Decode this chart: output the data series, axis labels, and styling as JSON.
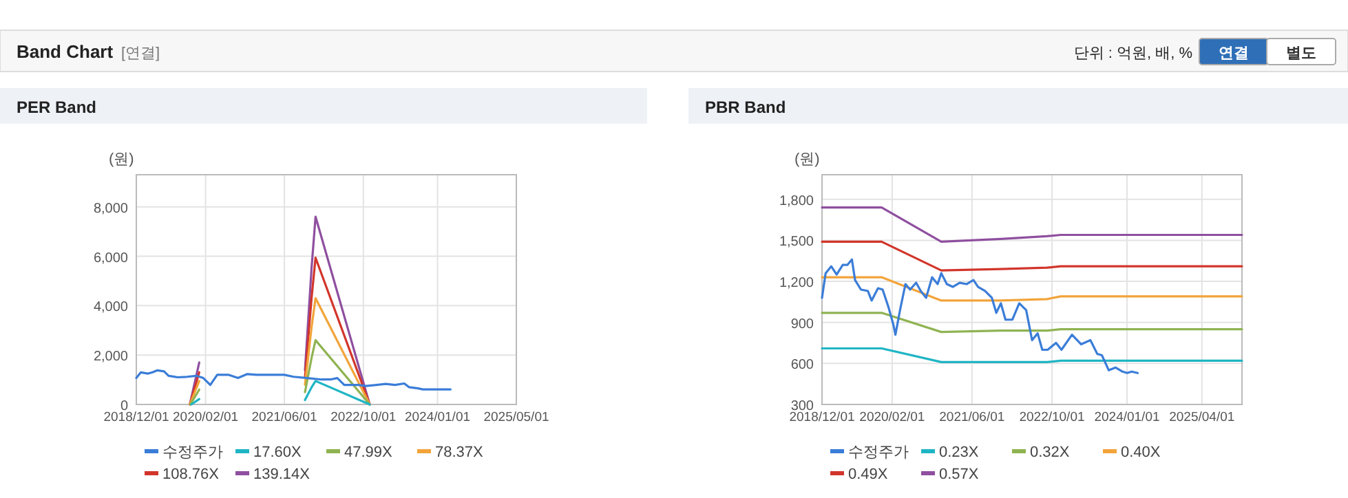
{
  "chart_data": [
    {
      "type": "line",
      "title": "PER Band",
      "ylabel": "(원)",
      "annotations": [
        "Band Chart",
        "[연결]",
        "단위 : 억원, 배, %",
        "연결",
        "별도"
      ],
      "grid": true,
      "legend": "bottom",
      "xlim": [
        "2018-12-01",
        "2025-05-01"
      ],
      "ylim": [
        0,
        9300
      ],
      "xticks": [
        {
          "value": "2018-12-01",
          "label": "2018/12/01"
        },
        {
          "value": "2020-02-01",
          "label": "2020/02/01"
        },
        {
          "value": "2021-06-01",
          "label": "2021/06/01"
        },
        {
          "value": "2022-10-01",
          "label": "2022/10/01"
        },
        {
          "value": "2024-01-01",
          "label": "2024/01/01"
        },
        {
          "value": "2025-05-01",
          "label": "2025/05/01"
        }
      ],
      "yticks": [
        0,
        {
          "value": 2000,
          "label": "2,000"
        },
        {
          "value": 4000,
          "label": "4,000"
        },
        {
          "value": 6000,
          "label": "6,000"
        },
        {
          "value": 8000,
          "label": "8,000"
        }
      ],
      "series": [
        {
          "name": "수정주가",
          "color": "#3b7dd8",
          "x": [
            "2018-12-01",
            "2018-12-29",
            "2019-02-10",
            "2019-03-11",
            "2019-04-08",
            "2019-05-21",
            "2019-06-18",
            "2019-08-14",
            "2019-10-10",
            "2019-12-06",
            "2020-01-18",
            "2020-03-01",
            "2020-04-13",
            "2020-06-23",
            "2020-08-19",
            "2020-10-15",
            "2020-12-11",
            "2021-02-06",
            "2021-05-31",
            "2021-07-27",
            "2021-10-20",
            "2022-01-14",
            "2022-03-12",
            "2022-04-23",
            "2022-06-05",
            "2022-08-30",
            "2022-10-17",
            "2022-12-21",
            "2023-02-16",
            "2023-04-14",
            "2023-06-10",
            "2023-07-09",
            "2023-09-04",
            "2023-10-02",
            "2023-11-28",
            "2024-03-21"
          ],
          "values": [
            1070,
            1300,
            1250,
            1300,
            1380,
            1340,
            1160,
            1100,
            1120,
            1160,
            1070,
            790,
            1200,
            1200,
            1070,
            1230,
            1200,
            1200,
            1200,
            1120,
            1070,
            1010,
            1010,
            1070,
            790,
            790,
            750,
            790,
            830,
            790,
            850,
            700,
            650,
            610,
            610,
            610
          ]
        },
        {
          "name": "17.60X",
          "color": "#1fb5c4",
          "x": [
            "2021-10-06",
            "2021-11-16",
            "2021-12-10",
            "2022-11-09"
          ],
          "values": [
            180,
            700,
            950,
            0
          ]
        },
        {
          "name": "47.99X",
          "color": "#8fb352",
          "x": [
            "2021-10-06",
            "2021-11-16",
            "2021-12-10",
            "2022-11-09"
          ],
          "values": [
            500,
            1900,
            2600,
            0
          ]
        },
        {
          "name": "78.37X",
          "color": "#f2a43a",
          "x": [
            "2021-10-06",
            "2021-11-16",
            "2021-12-10",
            "2022-11-09"
          ],
          "values": [
            800,
            3150,
            4300,
            0
          ]
        },
        {
          "name": "108.76X",
          "color": "#d2352b",
          "x": [
            "2021-10-06",
            "2021-11-16",
            "2021-12-10",
            "2022-11-09"
          ],
          "values": [
            1090,
            4350,
            5940,
            0
          ]
        },
        {
          "name": "139.14X",
          "color": "#8f4f9f",
          "x": [
            "2021-10-06",
            "2021-11-16",
            "2021-12-10",
            "2022-11-09"
          ],
          "values": [
            1390,
            5570,
            7600,
            0
          ]
        },
        {
          "color": "#1fb5c4",
          "x": [
            "2019-11-05",
            "2019-12-24"
          ],
          "values": [
            0,
            220
          ]
        },
        {
          "color": "#8fb352",
          "x": [
            "2019-10-30",
            "2019-12-24"
          ],
          "values": [
            0,
            600
          ]
        },
        {
          "color": "#f2a43a",
          "x": [
            "2019-10-27",
            "2019-12-24"
          ],
          "values": [
            0,
            950
          ]
        },
        {
          "color": "#d2352b",
          "x": [
            "2019-10-27",
            "2019-12-24"
          ],
          "values": [
            0,
            1300
          ]
        },
        {
          "color": "#8f4f9f",
          "x": [
            "2019-10-27",
            "2019-12-24"
          ],
          "values": [
            0,
            1700
          ]
        }
      ]
    },
    {
      "type": "line",
      "title": "PBR Band",
      "ylabel": "(원)",
      "grid": true,
      "legend": "bottom",
      "xlim": [
        "2018-12-01",
        "2025-12-01"
      ],
      "ylim": [
        300,
        1980
      ],
      "xticks": [
        {
          "value": "2018-12-01",
          "label": "2018/12/01"
        },
        {
          "value": "2020-02-01",
          "label": "2020/02/01"
        },
        {
          "value": "2021-06-01",
          "label": "2021/06/01"
        },
        {
          "value": "2022-10-01",
          "label": "2022/10/01"
        },
        {
          "value": "2024-01-01",
          "label": "2024/01/01"
        },
        {
          "value": "2025-04-01",
          "label": "2025/04/01"
        }
      ],
      "yticks": [
        300,
        600,
        900,
        {
          "value": 1200,
          "label": "1,200"
        },
        {
          "value": 1500,
          "label": "1,500"
        },
        {
          "value": 1800,
          "label": "1,800"
        }
      ],
      "series": [
        {
          "name": "수정주가",
          "color": "#3b7dd8",
          "x": [
            "2018-12-01",
            "2018-12-23",
            "2019-01-26",
            "2019-02-28",
            "2019-04-06",
            "2019-05-04",
            "2019-06-01",
            "2019-06-20",
            "2019-07-26",
            "2019-09-06",
            "2019-09-29",
            "2019-11-07",
            "2019-12-05",
            "2020-01-10",
            "2020-02-07",
            "2020-02-21",
            "2020-03-20",
            "2020-04-22",
            "2020-05-20",
            "2020-06-26",
            "2020-07-24",
            "2020-08-26",
            "2020-10-01",
            "2020-11-04",
            "2020-11-26",
            "2020-12-30",
            "2021-02-04",
            "2021-03-18",
            "2021-04-29",
            "2021-06-10",
            "2021-07-08",
            "2021-08-19",
            "2021-09-30",
            "2021-10-27",
            "2021-11-24",
            "2021-12-22",
            "2022-02-02",
            "2022-03-16",
            "2022-04-27",
            "2022-06-02",
            "2022-07-06",
            "2022-08-03",
            "2022-09-05",
            "2022-10-26",
            "2022-11-28",
            "2023-01-31",
            "2023-03-28",
            "2023-05-23",
            "2023-07-04",
            "2023-08-01",
            "2023-09-12",
            "2023-10-24",
            "2023-12-05",
            "2024-01-02",
            "2024-01-29",
            "2024-03-06"
          ],
          "values": [
            1080,
            1260,
            1310,
            1250,
            1320,
            1320,
            1360,
            1210,
            1140,
            1130,
            1060,
            1150,
            1140,
            1010,
            890,
            810,
            990,
            1180,
            1140,
            1190,
            1130,
            1080,
            1230,
            1180,
            1260,
            1180,
            1160,
            1190,
            1180,
            1210,
            1160,
            1130,
            1080,
            970,
            1040,
            920,
            920,
            1040,
            990,
            770,
            820,
            700,
            700,
            750,
            700,
            810,
            740,
            770,
            670,
            660,
            550,
            570,
            540,
            530,
            540,
            530
          ]
        },
        {
          "name": "0.23X",
          "color": "#1fb5c4",
          "x": [
            "2018-12-01",
            "2019-11-29",
            "2020-11-26",
            "2021-11-24",
            "2022-08-31",
            "2022-11-23",
            "2025-12-01"
          ],
          "values": [
            710,
            710,
            610,
            610,
            610,
            620,
            620
          ]
        },
        {
          "name": "0.32X",
          "color": "#8fb352",
          "x": [
            "2018-12-01",
            "2019-11-29",
            "2020-11-26",
            "2021-11-24",
            "2022-08-31",
            "2022-11-23",
            "2025-12-01"
          ],
          "values": [
            970,
            970,
            830,
            840,
            840,
            850,
            850
          ]
        },
        {
          "name": "0.40X",
          "color": "#f2a43a",
          "x": [
            "2018-12-01",
            "2019-11-29",
            "2020-11-26",
            "2021-11-24",
            "2022-08-31",
            "2022-11-23",
            "2025-12-01"
          ],
          "values": [
            1230,
            1230,
            1060,
            1060,
            1070,
            1090,
            1090
          ]
        },
        {
          "name": "0.49X",
          "color": "#d2352b",
          "x": [
            "2018-12-01",
            "2019-11-29",
            "2020-11-26",
            "2021-11-24",
            "2022-08-31",
            "2022-11-23",
            "2025-12-01"
          ],
          "values": [
            1490,
            1490,
            1280,
            1290,
            1300,
            1310,
            1310
          ]
        },
        {
          "name": "0.57X",
          "color": "#8f4f9f",
          "x": [
            "2018-12-01",
            "2019-11-29",
            "2020-11-26",
            "2021-11-24",
            "2022-08-31",
            "2022-11-23",
            "2025-12-01"
          ],
          "values": [
            1740,
            1740,
            1490,
            1510,
            1530,
            1540,
            1540
          ]
        }
      ]
    }
  ]
}
